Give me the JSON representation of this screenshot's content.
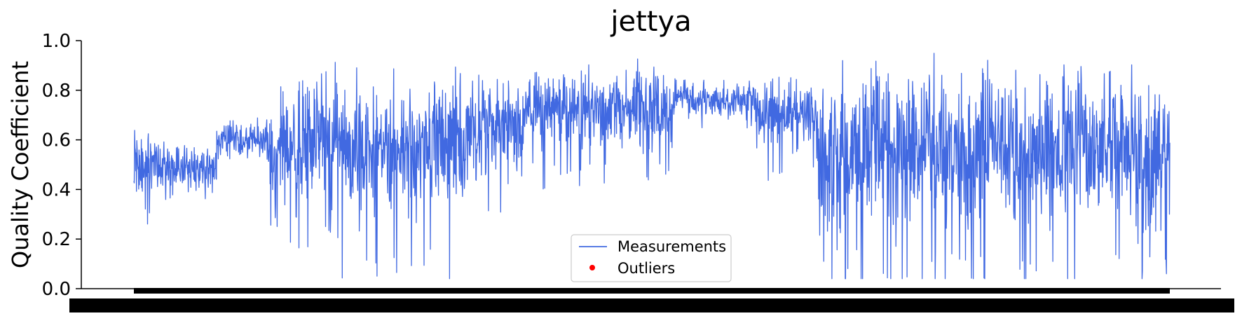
{
  "chart_data": {
    "type": "line",
    "title": "jettya",
    "xlabel": "",
    "ylabel": "Quality Coefficient",
    "ylim": [
      0,
      1
    ],
    "yticks": [
      "0.0",
      "0.2",
      "0.4",
      "0.6",
      "0.8",
      "1.0"
    ],
    "grid": false,
    "legend_position": "bottom-center",
    "x_tick_labels_note": "dense overlapping tick labels rendered as solid black band",
    "colors": {
      "measurements": "#4169e1",
      "outliers": "#ff0000"
    },
    "series": [
      {
        "name": "Measurements",
        "style": "line",
        "n_points": 2800,
        "segments": [
          {
            "from": 0.0,
            "to": 0.03,
            "mean": 0.5,
            "amplitude": 0.17
          },
          {
            "from": 0.03,
            "to": 0.08,
            "mean": 0.48,
            "amplitude": 0.15
          },
          {
            "from": 0.08,
            "to": 0.13,
            "mean": 0.6,
            "amplitude": 0.12
          },
          {
            "from": 0.13,
            "to": 0.14,
            "mean": 0.55,
            "amplitude": 0.2
          },
          {
            "from": 0.14,
            "to": 0.32,
            "mean": 0.58,
            "amplitude": 0.38
          },
          {
            "from": 0.32,
            "to": 0.38,
            "mean": 0.65,
            "amplitude": 0.3
          },
          {
            "from": 0.38,
            "to": 0.52,
            "mean": 0.72,
            "amplitude": 0.22
          },
          {
            "from": 0.52,
            "to": 0.6,
            "mean": 0.76,
            "amplitude": 0.1
          },
          {
            "from": 0.6,
            "to": 0.66,
            "mean": 0.7,
            "amplitude": 0.18
          },
          {
            "from": 0.66,
            "to": 1.0,
            "mean": 0.56,
            "amplitude": 0.42
          }
        ]
      },
      {
        "name": "Outliers",
        "style": "points",
        "values": []
      }
    ]
  },
  "legend": {
    "items": [
      {
        "label": "Measurements",
        "kind": "line"
      },
      {
        "label": "Outliers",
        "kind": "dot"
      }
    ]
  }
}
